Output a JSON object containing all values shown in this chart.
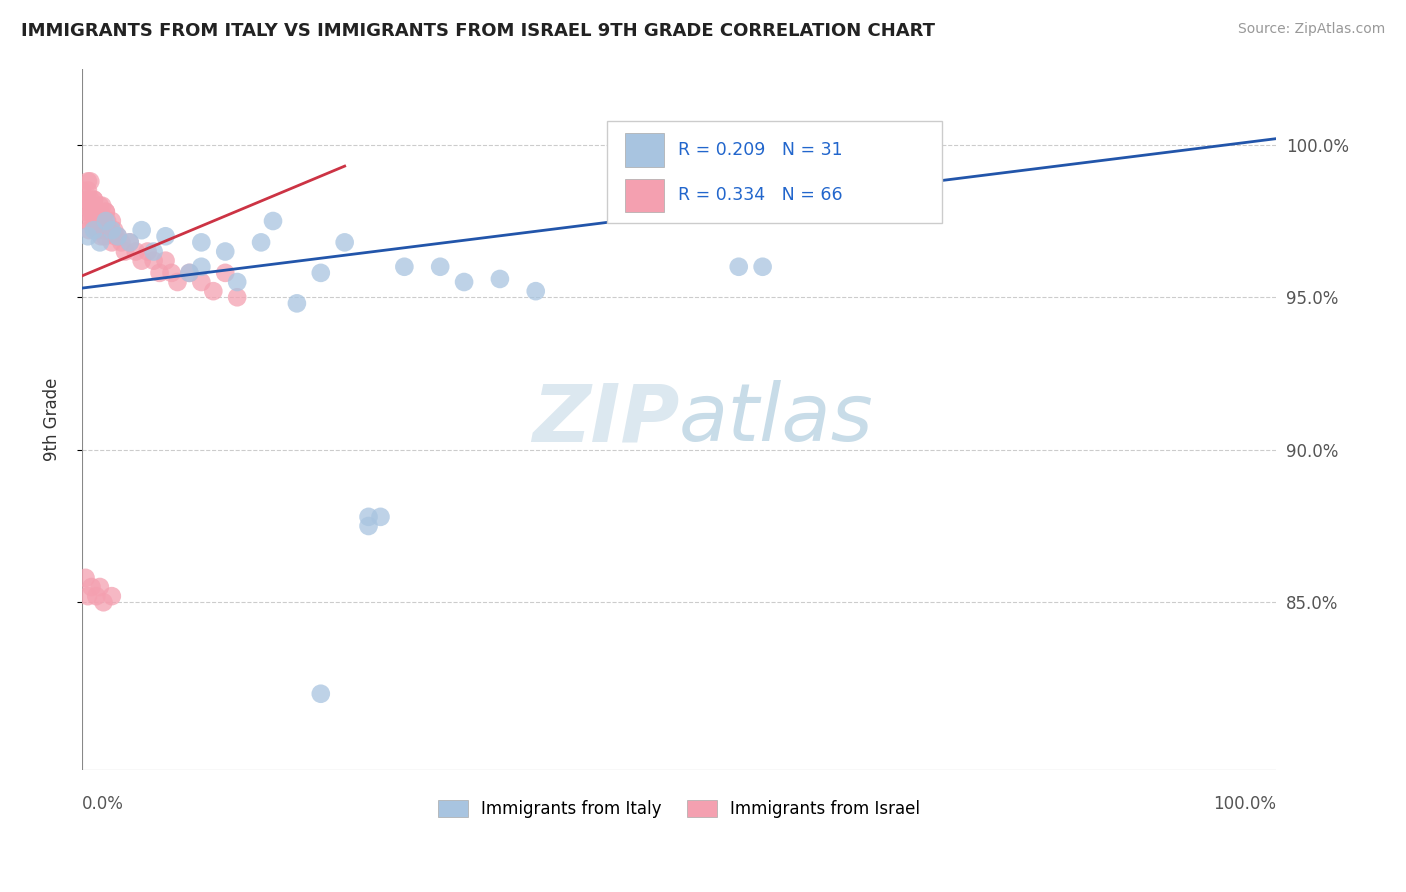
{
  "title": "IMMIGRANTS FROM ITALY VS IMMIGRANTS FROM ISRAEL 9TH GRADE CORRELATION CHART",
  "source": "Source: ZipAtlas.com",
  "ylabel": "9th Grade",
  "y_ticks": [
    "100.0%",
    "95.0%",
    "90.0%",
    "85.0%"
  ],
  "y_tick_vals": [
    1.0,
    0.95,
    0.9,
    0.85
  ],
  "xlim": [
    0.0,
    1.0
  ],
  "ylim": [
    0.795,
    1.025
  ],
  "legend_italy": "Immigrants from Italy",
  "legend_israel": "Immigrants from Israel",
  "R_italy": "R = 0.209",
  "N_italy": "N = 31",
  "R_israel": "R = 0.334",
  "N_israel": "N = 66",
  "italy_color": "#a8c4e0",
  "israel_color": "#f4a0b0",
  "italy_line_color": "#2255aa",
  "israel_line_color": "#cc3344",
  "title_color": "#222222",
  "background_color": "#ffffff",
  "grid_color": "#cccccc",
  "italy_scatter_x": [
    0.005,
    0.01,
    0.015,
    0.02,
    0.025,
    0.03,
    0.04,
    0.05,
    0.06,
    0.07,
    0.09,
    0.1,
    0.1,
    0.12,
    0.13,
    0.15,
    0.16,
    0.18,
    0.2,
    0.22,
    0.24,
    0.24,
    0.25,
    0.27,
    0.3,
    0.32,
    0.35,
    0.38,
    0.55,
    0.57,
    0.2
  ],
  "italy_scatter_y": [
    0.97,
    0.972,
    0.968,
    0.975,
    0.972,
    0.97,
    0.968,
    0.972,
    0.965,
    0.97,
    0.958,
    0.968,
    0.96,
    0.965,
    0.955,
    0.968,
    0.975,
    0.948,
    0.958,
    0.968,
    0.878,
    0.875,
    0.878,
    0.96,
    0.96,
    0.955,
    0.956,
    0.952,
    0.96,
    0.96,
    0.82
  ],
  "israel_scatter_x": [
    0.0,
    0.002,
    0.003,
    0.004,
    0.005,
    0.006,
    0.007,
    0.008,
    0.009,
    0.01,
    0.011,
    0.012,
    0.013,
    0.014,
    0.015,
    0.016,
    0.017,
    0.018,
    0.019,
    0.02,
    0.005,
    0.008,
    0.01,
    0.012,
    0.015,
    0.018,
    0.02,
    0.022,
    0.025,
    0.028,
    0.005,
    0.007,
    0.009,
    0.011,
    0.013,
    0.015,
    0.017,
    0.019,
    0.021,
    0.023,
    0.025,
    0.027,
    0.03,
    0.033,
    0.036,
    0.04,
    0.045,
    0.05,
    0.055,
    0.06,
    0.065,
    0.07,
    0.075,
    0.08,
    0.09,
    0.1,
    0.11,
    0.12,
    0.13,
    0.005,
    0.008,
    0.012,
    0.018,
    0.003,
    0.015,
    0.025
  ],
  "israel_scatter_y": [
    0.985,
    0.98,
    0.978,
    0.982,
    0.975,
    0.972,
    0.988,
    0.98,
    0.975,
    0.982,
    0.978,
    0.975,
    0.972,
    0.978,
    0.974,
    0.97,
    0.98,
    0.975,
    0.972,
    0.978,
    0.985,
    0.978,
    0.982,
    0.975,
    0.98,
    0.975,
    0.978,
    0.972,
    0.975,
    0.97,
    0.988,
    0.982,
    0.978,
    0.975,
    0.972,
    0.978,
    0.974,
    0.97,
    0.975,
    0.972,
    0.968,
    0.972,
    0.97,
    0.968,
    0.965,
    0.968,
    0.965,
    0.962,
    0.965,
    0.962,
    0.958,
    0.962,
    0.958,
    0.955,
    0.958,
    0.955,
    0.952,
    0.958,
    0.95,
    0.852,
    0.855,
    0.852,
    0.85,
    0.858,
    0.855,
    0.852
  ],
  "italy_line_x": [
    0.0,
    1.0
  ],
  "italy_line_y": [
    0.953,
    1.002
  ],
  "israel_line_x": [
    0.0,
    0.22
  ],
  "israel_line_y": [
    0.957,
    0.993
  ]
}
